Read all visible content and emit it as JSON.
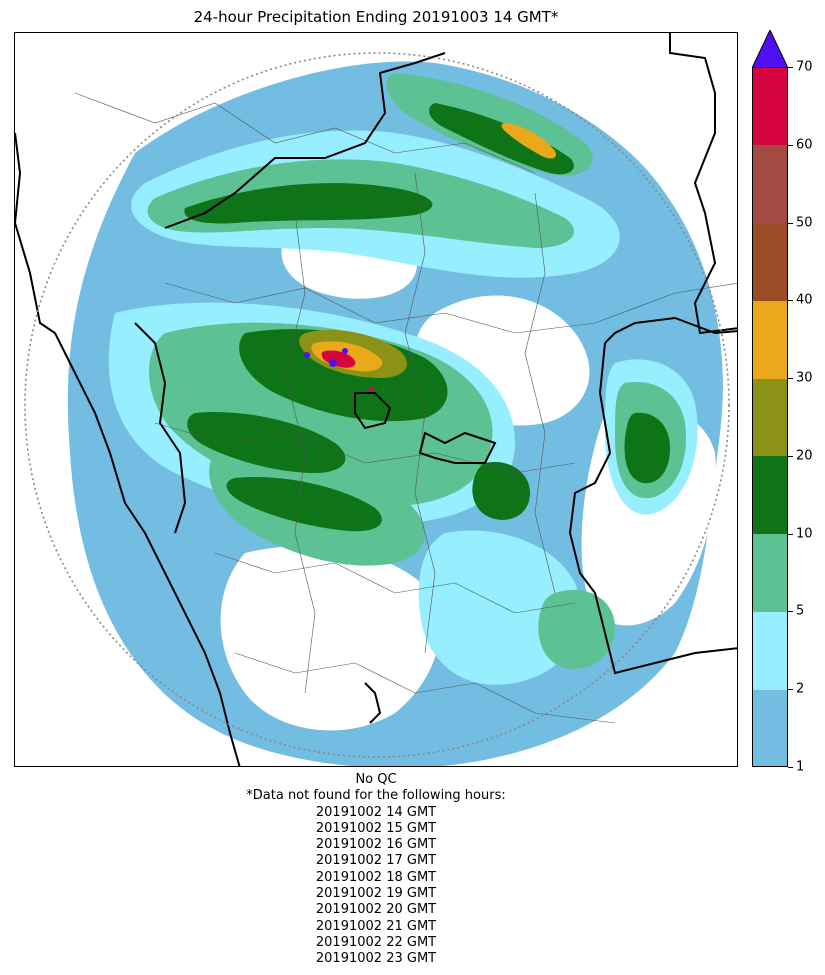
{
  "title": "24-hour Precipitation Ending 20191003 14 GMT*",
  "colorbar": {
    "tick_labels": [
      "1",
      "2",
      "5",
      "10",
      "20",
      "30",
      "40",
      "50",
      "60",
      "70"
    ],
    "colors": [
      "#74bde2",
      "#96eefe",
      "#5cc294",
      "#0f7318",
      "#8c9215",
      "#e9a91a",
      "#9b4b25",
      "#a34a42",
      "#d4053f"
    ],
    "extend_color": "#4e10f2",
    "extend": "max"
  },
  "map": {
    "type": "radar precipitation map",
    "legend_colors_used": [
      "#74bde2",
      "#96eefe",
      "#5cc294",
      "#0f7318",
      "#8c9215",
      "#e9a91a",
      "#d4053f",
      "#4e10f2"
    ],
    "range_ring": "dotted gray circle",
    "borders": [
      "thick black national/coast lines",
      "thin gray state/district lines"
    ]
  },
  "notes": {
    "qc_line": "No QC",
    "missing_header": "*Data not found for the following hours:",
    "missing_hours": [
      "20191002 14 GMT",
      "20191002 15 GMT",
      "20191002 16 GMT",
      "20191002 17 GMT",
      "20191002 18 GMT",
      "20191002 19 GMT",
      "20191002 20 GMT",
      "20191002 21 GMT",
      "20191002 22 GMT",
      "20191002 23 GMT"
    ]
  }
}
